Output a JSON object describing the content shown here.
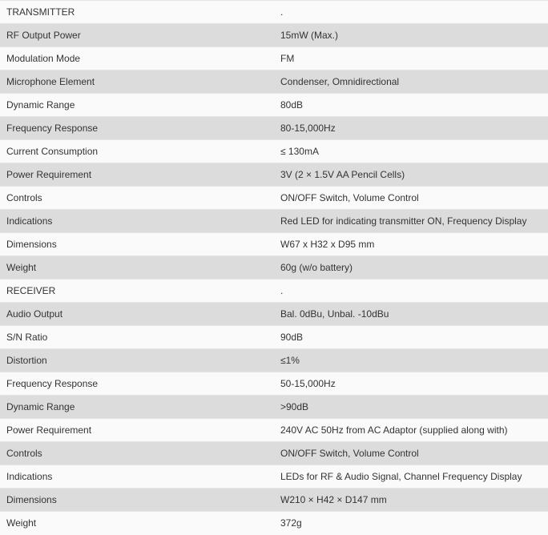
{
  "rows": [
    [
      "TRANSMITTER",
      "."
    ],
    [
      "RF Output Power",
      "15mW (Max.)"
    ],
    [
      "Modulation Mode",
      "FM"
    ],
    [
      "Microphone Element",
      "Condenser, Omnidirectional"
    ],
    [
      "Dynamic Range",
      "80dB"
    ],
    [
      "Frequency Response",
      "80-15,000Hz"
    ],
    [
      "Current Consumption",
      "≤ 130mA"
    ],
    [
      "Power Requirement",
      "3V (2 × 1.5V AA Pencil Cells)"
    ],
    [
      "Controls",
      "ON/OFF Switch, Volume Control"
    ],
    [
      "Indications",
      "Red LED for indicating transmitter ON, Frequency Display"
    ],
    [
      "Dimensions",
      "W67 x H32 x D95 mm"
    ],
    [
      "Weight",
      "60g (w/o battery)"
    ],
    [
      "RECEIVER",
      "."
    ],
    [
      "Audio Output",
      "Bal. 0dBu, Unbal. -10dBu"
    ],
    [
      "S/N Ratio",
      "90dB"
    ],
    [
      "Distortion",
      "≤1%"
    ],
    [
      "Frequency Response",
      "50-15,000Hz"
    ],
    [
      "Dynamic Range",
      ">90dB"
    ],
    [
      "Power Requirement",
      "240V AC 50Hz from AC Adaptor (supplied along with)"
    ],
    [
      "Controls",
      "ON/OFF Switch, Volume Control"
    ],
    [
      "Indications",
      "LEDs for RF & Audio Signal, Channel Frequency Display"
    ],
    [
      "Dimensions",
      "W210 × H42 × D147 mm"
    ],
    [
      "Weight",
      "372g"
    ]
  ]
}
